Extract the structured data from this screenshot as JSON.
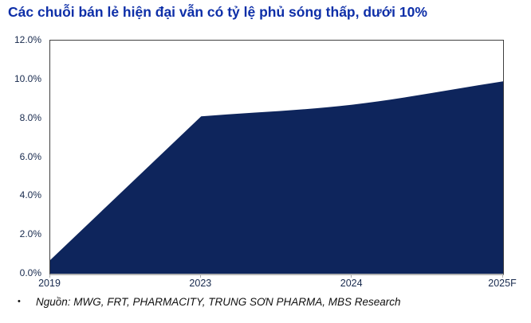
{
  "chart_data": {
    "type": "area",
    "title": "Các chuỗi bán lẻ hiện đại vẫn có tỷ lệ phủ sóng thấp, dưới 10%",
    "categories": [
      "2019",
      "2023",
      "2024",
      "2025F"
    ],
    "values": [
      0.7,
      8.1,
      8.7,
      9.9
    ],
    "unit": "%",
    "ylim": [
      0,
      12
    ],
    "ytick_labels": [
      "0.0%",
      "2.0%",
      "4.0%",
      "6.0%",
      "8.0%",
      "10.0%",
      "12.0%"
    ],
    "grid": false,
    "legend": false,
    "colors": {
      "area_fill": "#0E255C",
      "title_text": "#0E2FA8",
      "axis_labels": "#17294D",
      "plot_border": "#3F3F3F",
      "baseline": "#B2B2B2"
    }
  },
  "source_note": {
    "bullet": "•",
    "text": "Nguồn: MWG, FRT, PHARMACITY, TRUNG SƠN PHARMA, MBS Research"
  }
}
